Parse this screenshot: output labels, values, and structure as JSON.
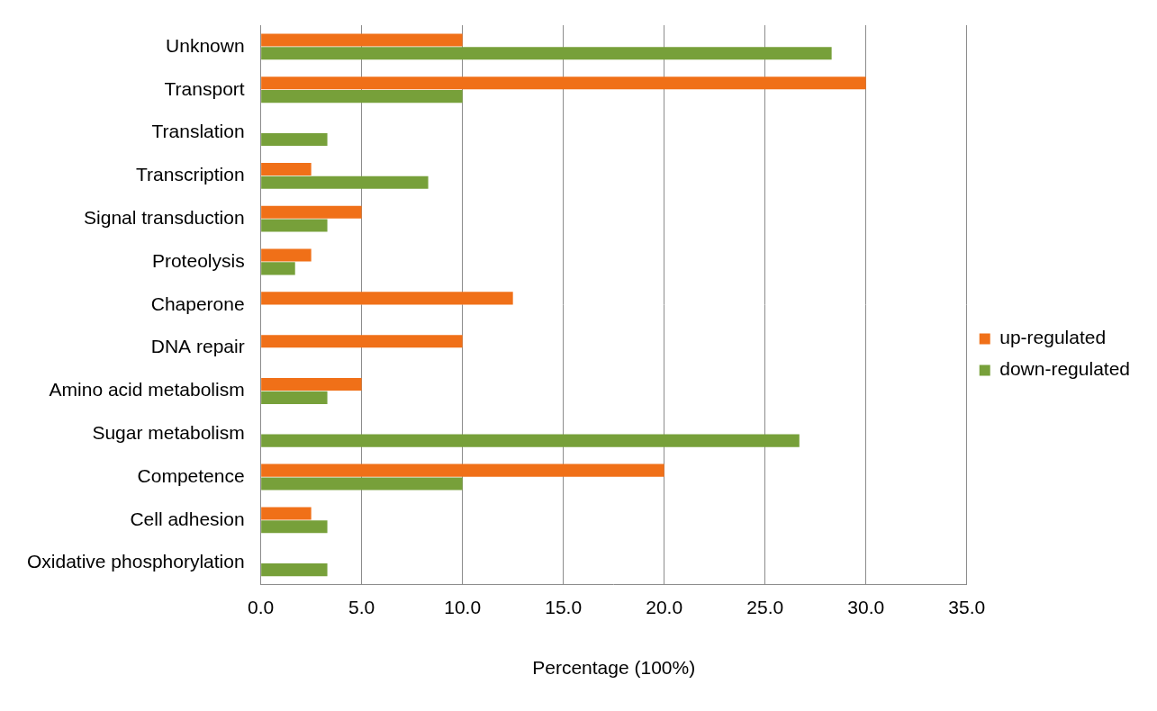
{
  "chart_data": {
    "type": "bar",
    "orientation": "horizontal",
    "x_label": "Percentage (100%)",
    "categories": [
      "Unknown",
      "Transport",
      "Translation",
      "Transcription",
      "Signal transduction",
      "Proteolysis",
      "Chaperone",
      "DNA repair",
      "Amino acid metabolism",
      "Sugar metabolism",
      "Competence",
      "Cell adhesion",
      "Oxidative phosphorylation"
    ],
    "series": [
      {
        "name": "up-regulated",
        "color": "#f07018",
        "values": [
          10,
          30,
          0,
          2.5,
          5,
          2.5,
          12.5,
          10,
          5,
          0,
          20,
          2.5,
          0
        ]
      },
      {
        "name": "down-regulated",
        "color": "#77a03a",
        "values": [
          28.3,
          10,
          3.3,
          8.3,
          3.3,
          1.7,
          0,
          0,
          3.3,
          26.7,
          10,
          3.3,
          3.3
        ]
      }
    ],
    "xlim": [
      0,
      35
    ],
    "xticks": [
      {
        "value": 0,
        "label": "0.0"
      },
      {
        "value": 5,
        "label": "5.0"
      },
      {
        "value": 10,
        "label": "10.0"
      },
      {
        "value": 15,
        "label": "15.0"
      },
      {
        "value": 20,
        "label": "20.0"
      },
      {
        "value": 25,
        "label": "25.0"
      },
      {
        "value": 30,
        "label": "30.0"
      },
      {
        "value": 35,
        "label": "35.0"
      }
    ],
    "grid": true,
    "legend": "right"
  }
}
